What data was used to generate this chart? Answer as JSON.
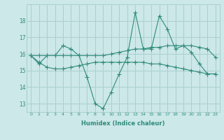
{
  "xlabel": "Humidex (Indice chaleur)",
  "x": [
    0,
    1,
    2,
    3,
    4,
    5,
    6,
    7,
    8,
    9,
    10,
    11,
    12,
    13,
    14,
    15,
    16,
    17,
    18,
    19,
    20,
    21,
    22,
    23
  ],
  "series1": [
    15.9,
    15.4,
    15.9,
    15.9,
    16.5,
    16.3,
    15.9,
    14.6,
    13.0,
    12.7,
    13.7,
    14.8,
    15.8,
    18.5,
    16.3,
    16.3,
    18.3,
    17.5,
    16.3,
    16.5,
    16.1,
    15.4,
    14.8,
    14.8
  ],
  "series2": [
    15.9,
    15.9,
    15.9,
    15.9,
    15.9,
    15.9,
    15.9,
    15.9,
    15.9,
    15.9,
    16.0,
    16.1,
    16.2,
    16.3,
    16.3,
    16.4,
    16.4,
    16.5,
    16.5,
    16.5,
    16.5,
    16.4,
    16.3,
    15.8
  ],
  "series3": [
    15.9,
    15.5,
    15.2,
    15.1,
    15.1,
    15.2,
    15.3,
    15.4,
    15.5,
    15.5,
    15.5,
    15.5,
    15.5,
    15.5,
    15.5,
    15.4,
    15.4,
    15.3,
    15.2,
    15.1,
    15.0,
    14.9,
    14.8,
    14.8
  ],
  "color": "#2e8b7a",
  "background": "#cce8e8",
  "grid_color": "#aacfcf",
  "ylim": [
    12.5,
    19.0
  ],
  "yticks": [
    13,
    14,
    15,
    16,
    17,
    18
  ],
  "xticks": [
    0,
    1,
    2,
    3,
    4,
    5,
    6,
    7,
    8,
    9,
    10,
    11,
    12,
    13,
    14,
    15,
    16,
    17,
    18,
    19,
    20,
    21,
    22,
    23
  ]
}
